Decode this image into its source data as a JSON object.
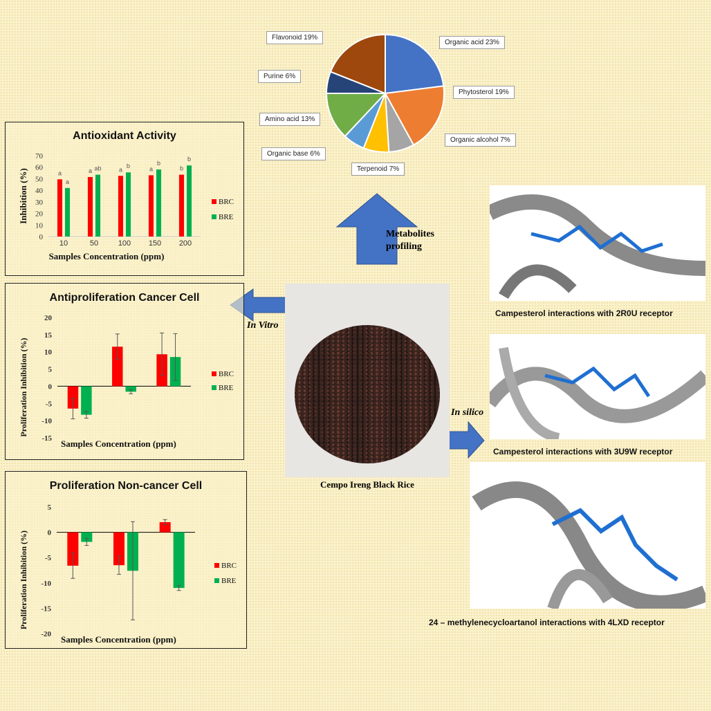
{
  "pie": {
    "type": "pie",
    "slices": [
      {
        "label": "Organic acid 23%",
        "value": 23,
        "color": "#4472c4"
      },
      {
        "label": "Phytosterol 19%",
        "value": 19,
        "color": "#ed7d31"
      },
      {
        "label": "Organic alcohol 7%",
        "value": 7,
        "color": "#a5a5a5"
      },
      {
        "label": "Terpenoid 7%",
        "value": 7,
        "color": "#ffc000"
      },
      {
        "label": "Organic base 6%",
        "value": 6,
        "color": "#5b9bd5"
      },
      {
        "label": "Amino acid 13%",
        "value": 13,
        "color": "#70ad47"
      },
      {
        "label": "Purine 6%",
        "value": 6,
        "color": "#264478"
      },
      {
        "label": "Flavonoid 19%",
        "value": 19,
        "color": "#9e480e"
      }
    ]
  },
  "arrows": {
    "metabolites": "Metabolites profiling",
    "in_vitro": "In Vitro",
    "in_silico": "In silico",
    "color": "#4472c4"
  },
  "center": {
    "caption": "Cempo Ireng Black Rice"
  },
  "docking": [
    {
      "caption": "Campesterol interactions with 2R0U receptor",
      "tag": "c"
    },
    {
      "caption": "Campesterol interactions with 3U9W receptor",
      "tag": "c"
    },
    {
      "caption": "24 – methylenecycloartanol interactions with 4LXD receptor",
      "tag": "c"
    }
  ],
  "chart_data": [
    {
      "type": "bar",
      "title": "Antioxidant Activity",
      "xlabel": "Samples Concentration (ppm)",
      "ylabel": "Inhibition (%)",
      "categories": [
        "10",
        "50",
        "100",
        "150",
        "200"
      ],
      "ylim": [
        0,
        70
      ],
      "yticks": [
        "0",
        "10",
        "20",
        "30",
        "40",
        "50",
        "60",
        "70"
      ],
      "legend": "right",
      "series": [
        {
          "name": "BRC",
          "color": "#ff0000",
          "values": [
            49.5,
            51.5,
            52.5,
            53,
            53.5
          ],
          "letters": [
            "a",
            "a",
            "a",
            "a",
            "b"
          ]
        },
        {
          "name": "BRE",
          "color": "#00b050",
          "values": [
            42,
            53.5,
            55.5,
            58,
            61.5
          ],
          "letters": [
            "a",
            "ab",
            "b",
            "b",
            "b"
          ]
        }
      ]
    },
    {
      "type": "bar",
      "title": "Antiproliferation Cancer Cell",
      "xlabel": "Samples Concentration (ppm)",
      "ylabel": "Proliferation Inhibition (%)",
      "categories": [
        "",
        "",
        ""
      ],
      "ylim": [
        -15,
        20
      ],
      "yticks": [
        "-15",
        "-10",
        "-5",
        "0",
        "5",
        "10",
        "15",
        "20"
      ],
      "legend": "right",
      "series": [
        {
          "name": "BRC",
          "color": "#ff0000",
          "values": [
            -6.5,
            11.5,
            9.3
          ],
          "errors": [
            3,
            3.7,
            6.2
          ]
        },
        {
          "name": "BRE",
          "color": "#00b050",
          "values": [
            -8.3,
            -1.6,
            8.5
          ],
          "errors": [
            1,
            0.6,
            6.8
          ]
        }
      ]
    },
    {
      "type": "bar",
      "title": "Proliferation Non-cancer Cell",
      "xlabel": "Samples Concentration (ppm)",
      "ylabel": "Proliferation Inhibition (%)",
      "categories": [
        "",
        "",
        ""
      ],
      "ylim": [
        -20,
        5
      ],
      "yticks": [
        "-20",
        "-15",
        "-10",
        "-5",
        "0",
        "5"
      ],
      "legend": "right",
      "series": [
        {
          "name": "BRC",
          "color": "#ff0000",
          "values": [
            -6.6,
            -6.5,
            2
          ],
          "errors": [
            2.5,
            1.8,
            0.5
          ]
        },
        {
          "name": "BRE",
          "color": "#00b050",
          "values": [
            -1.9,
            -7.6,
            -11
          ],
          "errors": [
            0.7,
            9.7,
            0.5
          ]
        }
      ]
    }
  ]
}
